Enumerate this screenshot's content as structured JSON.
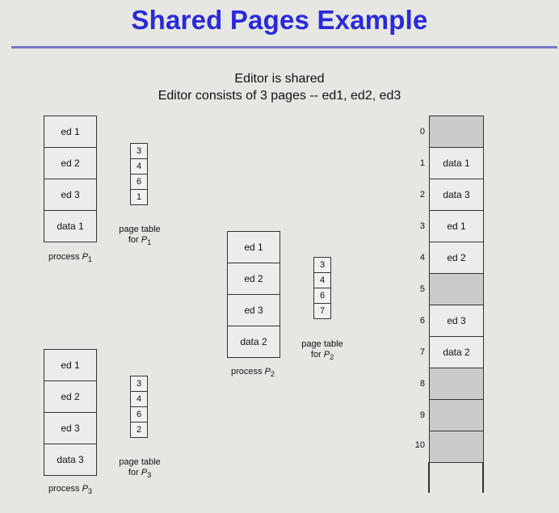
{
  "title": "Shared Pages Example",
  "subtitle_1": "Editor is shared",
  "subtitle_2": "Editor  consists of 3 pages --  ed1, ed2, ed3",
  "processes": [
    {
      "pages": [
        "ed 1",
        "ed 2",
        "ed 3",
        "data 1"
      ],
      "caption": "process",
      "sub": "1",
      "page_table": [
        "3",
        "4",
        "6",
        "1"
      ],
      "pt_caption_1": "page table",
      "pt_caption_2": "for",
      "pt_sub": "1"
    },
    {
      "pages": [
        "ed 1",
        "ed 2",
        "ed 3",
        "data 2"
      ],
      "caption": "process",
      "sub": "2",
      "page_table": [
        "3",
        "4",
        "6",
        "7"
      ],
      "pt_caption_1": "page table",
      "pt_caption_2": "for",
      "pt_sub": "2"
    },
    {
      "pages": [
        "ed 1",
        "ed 2",
        "ed 3",
        "data 3"
      ],
      "caption": "process",
      "sub": "3",
      "page_table": [
        "3",
        "4",
        "6",
        "2"
      ],
      "pt_caption_1": "page table",
      "pt_caption_2": "for",
      "pt_sub": "3"
    }
  ],
  "physical_memory": [
    {
      "frame": "0",
      "content": ""
    },
    {
      "frame": "1",
      "content": "data 1"
    },
    {
      "frame": "2",
      "content": "data 3"
    },
    {
      "frame": "3",
      "content": "ed 1"
    },
    {
      "frame": "4",
      "content": "ed 2"
    },
    {
      "frame": "5",
      "content": ""
    },
    {
      "frame": "6",
      "content": "ed 3"
    },
    {
      "frame": "7",
      "content": "data 2"
    },
    {
      "frame": "8",
      "content": ""
    },
    {
      "frame": "9",
      "content": ""
    },
    {
      "frame": "10",
      "content": ""
    }
  ],
  "process_letter": "P"
}
